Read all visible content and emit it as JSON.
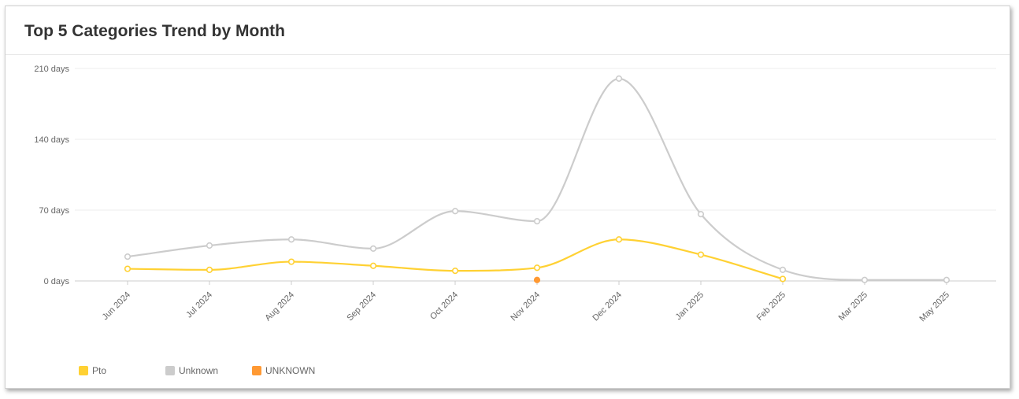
{
  "card": {
    "title": "Top 5 Categories Trend by Month"
  },
  "chart_data": {
    "type": "line",
    "title": "Top 5 Categories Trend by Month",
    "xlabel": "",
    "ylabel": "",
    "y_unit": "days",
    "ylim": [
      0,
      210
    ],
    "yticks": [
      0,
      70,
      140,
      210
    ],
    "ytick_labels": [
      "0 days",
      "70 days",
      "140 days",
      "210 days"
    ],
    "categories": [
      "Jun 2024",
      "Jul 2024",
      "Aug 2024",
      "Sep 2024",
      "Oct 2024",
      "Nov 2024",
      "Dec 2024",
      "Jan 2025",
      "Feb 2025",
      "Mar 2025",
      "May 2025"
    ],
    "grid": "horizontal",
    "legend_position": "bottom-left",
    "series": [
      {
        "name": "Unknown",
        "color": "#cccccc",
        "values": [
          24,
          35,
          41,
          32,
          69,
          59,
          200,
          66,
          11,
          1,
          1
        ]
      },
      {
        "name": "Pto",
        "color": "#ffd133",
        "values": [
          12,
          11,
          19,
          15,
          10,
          13,
          41,
          26,
          2,
          null,
          null
        ]
      },
      {
        "name": "UNKNOWN",
        "color": "#ff9933",
        "values": [
          null,
          null,
          null,
          null,
          null,
          1,
          null,
          null,
          null,
          null,
          null
        ]
      }
    ],
    "legend": [
      "Pto",
      "Unknown",
      "UNKNOWN"
    ]
  }
}
